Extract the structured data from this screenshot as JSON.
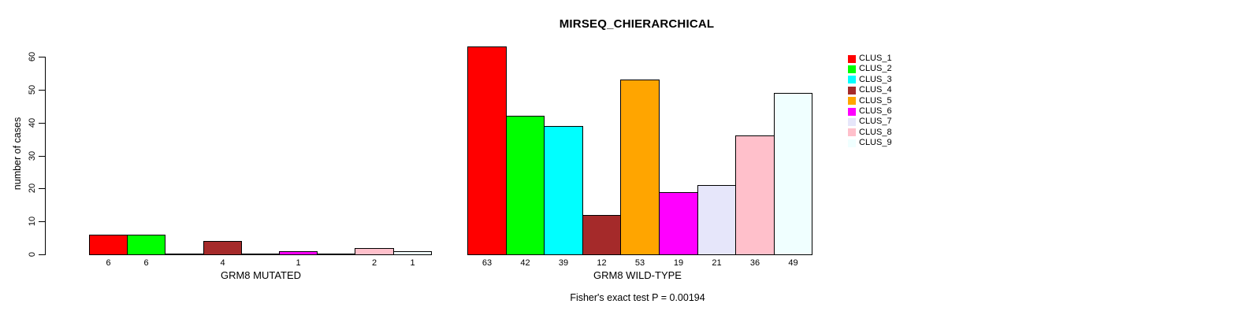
{
  "title": "MIRSEQ_CHIERARCHICAL",
  "y_axis": {
    "label": "number of cases",
    "ticks": [
      0,
      10,
      20,
      30,
      40,
      50,
      60
    ]
  },
  "footer": "Fisher's exact test P = 0.00194",
  "legend": [
    {
      "label": "CLUS_1",
      "color": "#FF0000"
    },
    {
      "label": "CLUS_2",
      "color": "#00FF00"
    },
    {
      "label": "CLUS_3",
      "color": "#00FFFF"
    },
    {
      "label": "CLUS_4",
      "color": "#A52A2A"
    },
    {
      "label": "CLUS_5",
      "color": "#FFA500"
    },
    {
      "label": "CLUS_6",
      "color": "#FF00FF"
    },
    {
      "label": "CLUS_7",
      "color": "#E6E6FA"
    },
    {
      "label": "CLUS_8",
      "color": "#FFC0CB"
    },
    {
      "label": "CLUS_9",
      "color": "#F0FFFF"
    }
  ],
  "chart_data": {
    "type": "bar",
    "title": "MIRSEQ_CHIERARCHICAL",
    "xlabel": "",
    "ylabel": "number of cases",
    "ylim": [
      0,
      63
    ],
    "yticks": [
      0,
      10,
      20,
      30,
      40,
      50,
      60
    ],
    "grid": false,
    "legend_position": "top-right",
    "bar_border_color": "#000000",
    "categories": [
      "CLUS_1",
      "CLUS_2",
      "CLUS_3",
      "CLUS_4",
      "CLUS_5",
      "CLUS_6",
      "CLUS_7",
      "CLUS_8",
      "CLUS_9"
    ],
    "colors": [
      "#FF0000",
      "#00FF00",
      "#00FFFF",
      "#A52A2A",
      "#FFA500",
      "#FF00FF",
      "#E6E6FA",
      "#FFC0CB",
      "#F0FFFF"
    ],
    "series": [
      {
        "name": "GRM8 MUTATED",
        "values": [
          6,
          6,
          0,
          4,
          0,
          1,
          0,
          2,
          1
        ]
      },
      {
        "name": "GRM8 WILD-TYPE",
        "values": [
          63,
          42,
          39,
          12,
          53,
          19,
          21,
          36,
          49
        ]
      }
    ],
    "bar_value_labels_shown_only_when_nonzero": true,
    "annotation": "Fisher's exact test P = 0.00194"
  }
}
